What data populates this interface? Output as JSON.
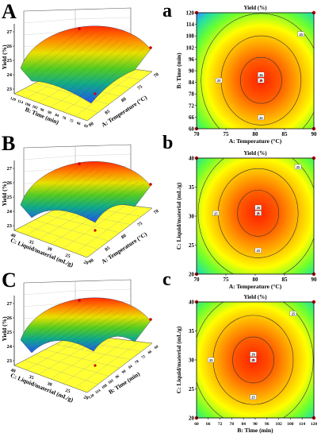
{
  "panels": {
    "A_letter": "A",
    "B_letter": "B",
    "C_letter": "C",
    "a_letter": "a",
    "b_letter": "b",
    "c_letter": "c"
  },
  "chart_data": [
    {
      "type": "surface",
      "id": "A",
      "zlabel": "Yield (%)",
      "xlabel": "A: Temperature (°C)",
      "ylabel": "B: Time (min)",
      "zticks": [
        "23",
        "24",
        "25",
        "26",
        "27"
      ],
      "xticks": [
        "70",
        "75",
        "80",
        "85",
        "90"
      ],
      "yticks": [
        "60",
        "66",
        "72",
        "78",
        "84",
        "90",
        "96",
        "102",
        "108",
        "114",
        "120"
      ]
    },
    {
      "type": "heatmap",
      "id": "a",
      "title": "Yield (%)",
      "xlabel": "A: Temperature (°C)",
      "ylabel": "B: Time (min)",
      "xticks": [
        "70",
        "75",
        "80",
        "85",
        "90"
      ],
      "yticks": [
        "60",
        "66",
        "72",
        "78",
        "84",
        "90",
        "96",
        "102",
        "108",
        "114",
        "120"
      ],
      "xlim": [
        70,
        90
      ],
      "ylim": [
        60,
        120
      ],
      "center": [
        81,
        85
      ],
      "contour_labels": [
        "25",
        "25",
        "25",
        "25",
        "26"
      ]
    },
    {
      "type": "surface",
      "id": "B",
      "zlabel": "Yield (%)",
      "xlabel": "A: Temperature (°C)",
      "ylabel": "C: Liquid/material (mL/g)",
      "zticks": [
        "23",
        "24",
        "25",
        "26",
        "27"
      ],
      "xticks": [
        "70",
        "75",
        "80",
        "85",
        "90"
      ],
      "yticks": [
        "20",
        "25",
        "30",
        "35",
        "40"
      ]
    },
    {
      "type": "heatmap",
      "id": "b",
      "title": "Yield (%)",
      "xlabel": "A: Temperature (°C)",
      "ylabel": "C: Liquid/material (mL/g)",
      "xticks": [
        "70",
        "75",
        "80",
        "85",
        "90"
      ],
      "yticks": [
        "20",
        "25",
        "30",
        "35",
        "40"
      ],
      "xlim": [
        70,
        90
      ],
      "ylim": [
        20,
        40
      ],
      "center": [
        80.5,
        30.5
      ],
      "contour_labels": [
        "25",
        "25",
        "25",
        "25",
        "26"
      ]
    },
    {
      "type": "surface",
      "id": "C",
      "zlabel": "Yield (%)",
      "xlabel": "B: Time (min)",
      "ylabel": "C: Liquid/material (mL/g)",
      "zticks": [
        "23",
        "24",
        "25",
        "26",
        "27"
      ],
      "xticks": [
        "60",
        "66",
        "72",
        "78",
        "84",
        "90",
        "96",
        "102",
        "108",
        "114",
        "120"
      ],
      "yticks": [
        "20",
        "25",
        "30",
        "35",
        "40"
      ]
    },
    {
      "type": "heatmap",
      "id": "c",
      "title": "Yield (%)",
      "xlabel": "B: Time (min)",
      "ylabel": "C: Liquid/material (mL/g)",
      "xticks": [
        "60",
        "66",
        "72",
        "78",
        "84",
        "90",
        "96",
        "102",
        "108",
        "114",
        "120"
      ],
      "yticks": [
        "20",
        "25",
        "30",
        "35",
        "40"
      ],
      "xlim": [
        60,
        120
      ],
      "ylim": [
        20,
        40
      ],
      "center": [
        89,
        30
      ],
      "contour_labels": [
        "25",
        "25",
        "25",
        "25",
        "26"
      ]
    }
  ],
  "colors": {
    "surface_floor": "#ffff33",
    "heat_hot": "#ff3300",
    "heat_cold": "#3399ff",
    "design_point": "#cc0000"
  }
}
